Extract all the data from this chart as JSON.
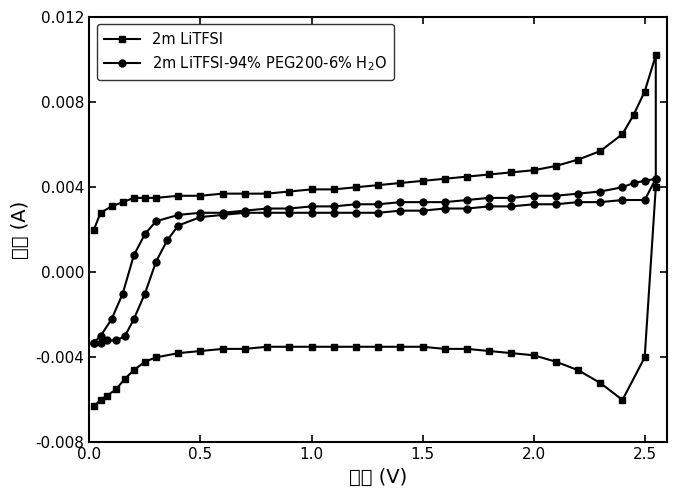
{
  "xlabel": "电压 (V)",
  "ylabel": "电流 (A)",
  "xlim": [
    0,
    2.6
  ],
  "ylim": [
    -0.008,
    0.012
  ],
  "xticks": [
    0.0,
    0.5,
    1.0,
    1.5,
    2.0,
    2.5
  ],
  "yticks": [
    -0.008,
    -0.004,
    0.0,
    0.004,
    0.008,
    0.012
  ],
  "legend1": "2m LiTFSI",
  "legend2": "2m LiTFSI-94% PEG200-6% H$_2$O",
  "s1_x": [
    0.02,
    0.05,
    0.08,
    0.12,
    0.16,
    0.2,
    0.25,
    0.3,
    0.4,
    0.5,
    0.6,
    0.7,
    0.8,
    0.9,
    1.0,
    1.1,
    1.2,
    1.3,
    1.4,
    1.5,
    1.6,
    1.7,
    1.8,
    1.9,
    2.0,
    2.1,
    2.2,
    2.3,
    2.4,
    2.5,
    2.55,
    2.55,
    2.5,
    2.45,
    2.4,
    2.3,
    2.2,
    2.1,
    2.0,
    1.9,
    1.8,
    1.7,
    1.6,
    1.5,
    1.4,
    1.3,
    1.2,
    1.1,
    1.0,
    0.9,
    0.8,
    0.7,
    0.6,
    0.5,
    0.4,
    0.3,
    0.25,
    0.2,
    0.15,
    0.1,
    0.05,
    0.02
  ],
  "s1_y": [
    -0.0063,
    -0.006,
    -0.0058,
    -0.0055,
    -0.005,
    -0.0046,
    -0.0042,
    -0.004,
    -0.0038,
    -0.0037,
    -0.0036,
    -0.0036,
    -0.0035,
    -0.0035,
    -0.0035,
    -0.0035,
    -0.0035,
    -0.0035,
    -0.0035,
    -0.0035,
    -0.0036,
    -0.0036,
    -0.0037,
    -0.0038,
    -0.0039,
    -0.0042,
    -0.0046,
    -0.0052,
    -0.006,
    -0.004,
    0.004,
    0.0102,
    0.0085,
    0.0074,
    0.0065,
    0.0057,
    0.0053,
    0.005,
    0.0048,
    0.0047,
    0.0046,
    0.0045,
    0.0044,
    0.0043,
    0.0042,
    0.0041,
    0.004,
    0.0039,
    0.0039,
    0.0038,
    0.0037,
    0.0037,
    0.0037,
    0.0036,
    0.0036,
    0.0035,
    0.0035,
    0.0035,
    0.0033,
    0.0031,
    0.0028,
    0.002
  ],
  "s2_x": [
    0.02,
    0.05,
    0.08,
    0.12,
    0.16,
    0.2,
    0.25,
    0.3,
    0.35,
    0.4,
    0.5,
    0.6,
    0.7,
    0.8,
    0.9,
    1.0,
    1.1,
    1.2,
    1.3,
    1.4,
    1.5,
    1.6,
    1.7,
    1.8,
    1.9,
    2.0,
    2.1,
    2.2,
    2.3,
    2.4,
    2.5,
    2.55,
    2.55,
    2.5,
    2.45,
    2.4,
    2.3,
    2.2,
    2.1,
    2.0,
    1.9,
    1.8,
    1.7,
    1.6,
    1.5,
    1.4,
    1.3,
    1.2,
    1.1,
    1.0,
    0.9,
    0.8,
    0.7,
    0.6,
    0.5,
    0.4,
    0.3,
    0.25,
    0.2,
    0.15,
    0.1,
    0.05,
    0.02
  ],
  "s2_y": [
    -0.0033,
    -0.0033,
    -0.0032,
    -0.0032,
    -0.003,
    -0.0022,
    -0.001,
    0.0005,
    0.0015,
    0.0022,
    0.0026,
    0.0027,
    0.0028,
    0.0028,
    0.0028,
    0.0028,
    0.0028,
    0.0028,
    0.0028,
    0.0029,
    0.0029,
    0.003,
    0.003,
    0.0031,
    0.0031,
    0.0032,
    0.0032,
    0.0033,
    0.0033,
    0.0034,
    0.0034,
    0.0044,
    0.0044,
    0.0043,
    0.0042,
    0.004,
    0.0038,
    0.0037,
    0.0036,
    0.0036,
    0.0035,
    0.0035,
    0.0034,
    0.0033,
    0.0033,
    0.0033,
    0.0032,
    0.0032,
    0.0031,
    0.0031,
    0.003,
    0.003,
    0.0029,
    0.0028,
    0.0028,
    0.0027,
    0.0024,
    0.0018,
    0.0008,
    -0.001,
    -0.0022,
    -0.003,
    -0.0033
  ]
}
